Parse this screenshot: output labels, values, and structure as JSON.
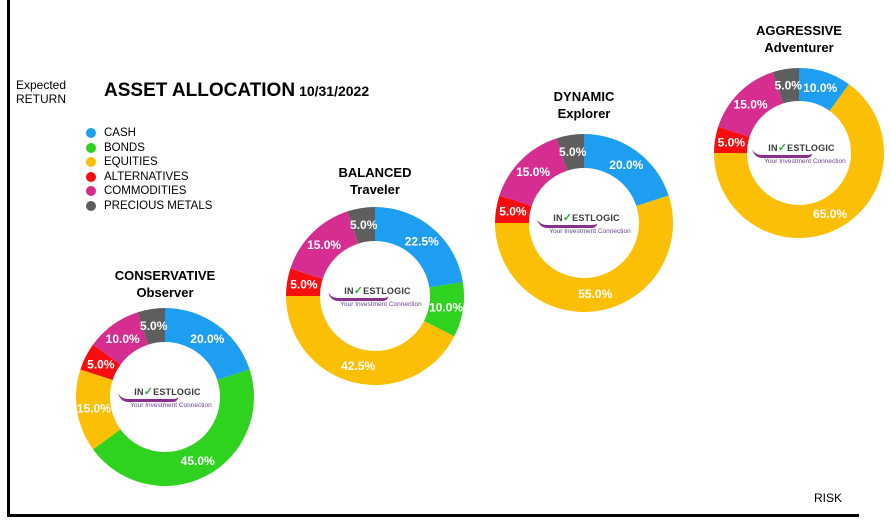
{
  "axes": {
    "y_label_line1": "Expected",
    "y_label_line2": "RETURN",
    "x_label": "RISK"
  },
  "header": {
    "title": "ASSET ALLOCATION",
    "date": "10/31/2022"
  },
  "legend": [
    {
      "label": "CASH",
      "color": "#1e9ef0"
    },
    {
      "label": "BONDS",
      "color": "#2fd31f"
    },
    {
      "label": "EQUITIES",
      "color": "#fbbf06"
    },
    {
      "label": "ALTERNATIVES",
      "color": "#f60d0f"
    },
    {
      "label": "COMMODITIES",
      "color": "#d62e90"
    },
    {
      "label": "PRECIOUS METALS",
      "color": "#5e5e5e"
    }
  ],
  "logo": {
    "name_pre": "IN",
    "name_mark": "✓",
    "name_post": "ESTLOGIC",
    "tagline": "Your Investment Connection"
  },
  "chart_data": [
    {
      "type": "pie",
      "name_line1": "CONSERVATIVE",
      "name_line2": "Observer",
      "categories": [
        "CASH",
        "BONDS",
        "EQUITIES",
        "ALTERNATIVES",
        "COMMODITIES",
        "PRECIOUS METALS"
      ],
      "values": [
        20.0,
        45.0,
        15.0,
        5.0,
        10.0,
        5.0
      ],
      "labels": [
        "20.0%",
        "45.0%",
        "15.0%",
        "5.0%",
        "10.0%",
        "5.0%"
      ]
    },
    {
      "type": "pie",
      "name_line1": "BALANCED",
      "name_line2": "Traveler",
      "categories": [
        "CASH",
        "BONDS",
        "EQUITIES",
        "ALTERNATIVES",
        "COMMODITIES",
        "PRECIOUS METALS"
      ],
      "values": [
        22.5,
        10.0,
        42.5,
        5.0,
        15.0,
        5.0
      ],
      "labels": [
        "22.5%",
        "10.0%",
        "42.5%",
        "5.0%",
        "15.0%",
        "5.0%"
      ]
    },
    {
      "type": "pie",
      "name_line1": "DYNAMIC",
      "name_line2": "Explorer",
      "categories": [
        "CASH",
        "BONDS",
        "EQUITIES",
        "ALTERNATIVES",
        "COMMODITIES",
        "PRECIOUS METALS"
      ],
      "values": [
        20.0,
        0,
        55.0,
        5.0,
        15.0,
        5.0
      ],
      "labels": [
        "20.0%",
        "",
        "55.0%",
        "5.0%",
        "15.0%",
        "5.0%"
      ]
    },
    {
      "type": "pie",
      "name_line1": "AGGRESSIVE",
      "name_line2": "Adventurer",
      "categories": [
        "CASH",
        "BONDS",
        "EQUITIES",
        "ALTERNATIVES",
        "COMMODITIES",
        "PRECIOUS METALS"
      ],
      "values": [
        10.0,
        0,
        65.0,
        5.0,
        15.0,
        5.0
      ],
      "labels": [
        "10.0%",
        "",
        "65.0%",
        "5.0%",
        "15.0%",
        "5.0%"
      ]
    }
  ]
}
